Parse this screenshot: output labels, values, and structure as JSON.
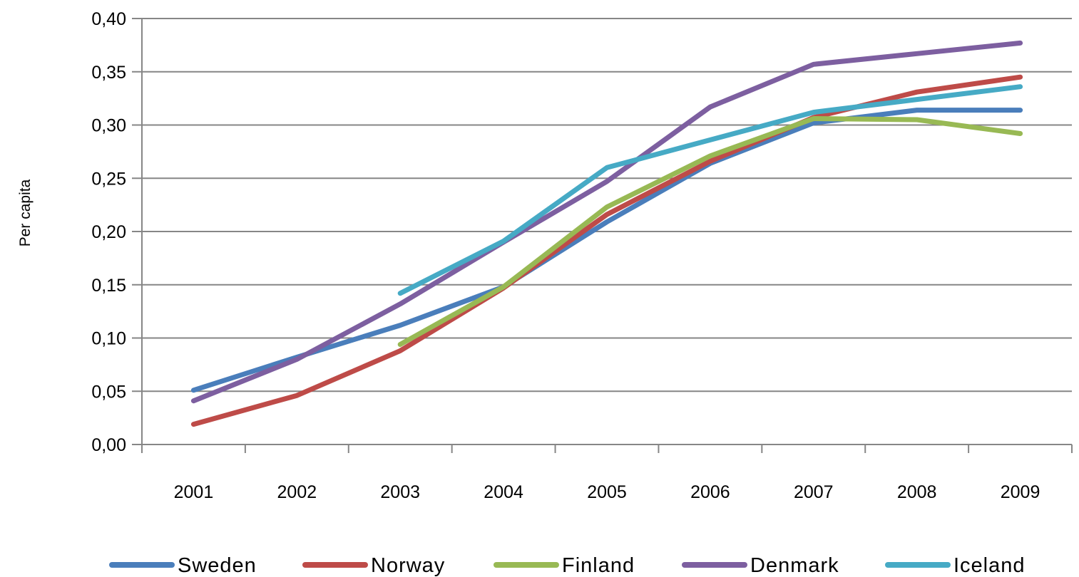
{
  "chart_data": {
    "type": "line",
    "ylabel": "Per capita",
    "xlabel": "",
    "categories": [
      "2001",
      "2002",
      "2003",
      "2004",
      "2005",
      "2006",
      "2007",
      "2008",
      "2009"
    ],
    "ylim": [
      0,
      0.4
    ],
    "yticks": [
      "0,00",
      "0,05",
      "0,10",
      "0,15",
      "0,20",
      "0,25",
      "0,30",
      "0,35",
      "0,40"
    ],
    "ytick_values": [
      0,
      0.05,
      0.1,
      0.15,
      0.2,
      0.25,
      0.3,
      0.35,
      0.4
    ],
    "grid": "horizontal",
    "legend_position": "bottom",
    "series": [
      {
        "name": "Sweden",
        "color": "#4a7ebb",
        "values": [
          0.051,
          0.082,
          0.112,
          0.148,
          0.209,
          0.264,
          0.302,
          0.314,
          0.314
        ]
      },
      {
        "name": "Norway",
        "color": "#be4b48",
        "values": [
          0.019,
          0.046,
          0.088,
          0.147,
          0.216,
          0.266,
          0.307,
          0.331,
          0.345
        ]
      },
      {
        "name": "Finland",
        "color": "#98b954",
        "values": [
          null,
          null,
          0.094,
          0.148,
          0.223,
          0.271,
          0.306,
          0.305,
          0.292
        ]
      },
      {
        "name": "Denmark",
        "color": "#7d5fa0",
        "values": [
          0.041,
          0.08,
          0.132,
          0.19,
          0.247,
          0.317,
          0.357,
          0.367,
          0.377
        ]
      },
      {
        "name": "Iceland",
        "color": "#46aac5",
        "values": [
          null,
          null,
          0.142,
          0.191,
          0.26,
          0.286,
          0.312,
          0.324,
          0.336
        ]
      }
    ]
  }
}
